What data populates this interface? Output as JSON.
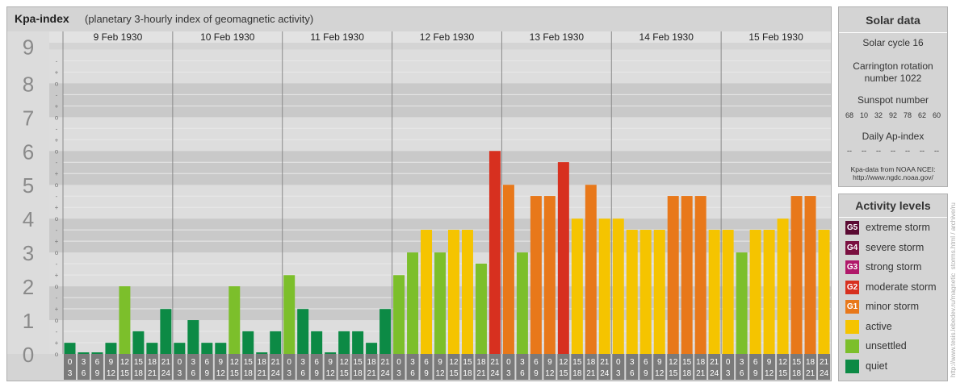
{
  "header": {
    "title": "Kpa-index",
    "subtitle": "(planetary 3-hourly index of geomagnetic activity)"
  },
  "solar": {
    "title": "Solar data",
    "cycle": "Solar cycle 16",
    "carrington": "Carrington rotation number 1022",
    "sunspot_title": "Sunspot number",
    "sunspot_values": [
      "68",
      "10",
      "32",
      "92",
      "78",
      "62",
      "60"
    ],
    "ap_title": "Daily Ap-index",
    "ap_values": [
      "--",
      "--",
      "--",
      "--",
      "--",
      "--",
      "--"
    ],
    "source_line1": "Kpa-data from NOAA NCEI:",
    "source_line2": "http://www.ngdc.noaa.gov/"
  },
  "activity": {
    "title": "Activity levels",
    "items": [
      {
        "code": "G5",
        "label": "extreme storm",
        "color": "#5a0a32"
      },
      {
        "code": "G4",
        "label": "severe storm",
        "color": "#7a1040"
      },
      {
        "code": "G3",
        "label": "strong storm",
        "color": "#b0186a"
      },
      {
        "code": "G2",
        "label": "moderate storm",
        "color": "#d7301f"
      },
      {
        "code": "G1",
        "label": "minor storm",
        "color": "#e8781a"
      },
      {
        "code": "",
        "label": "active",
        "color": "#f5c400"
      },
      {
        "code": "",
        "label": "unsettled",
        "color": "#7cbf2b"
      },
      {
        "code": "",
        "label": "quiet",
        "color": "#0c8a45"
      }
    ]
  },
  "credit": "http://www.tesis.lebedev.ru/magnetic_storms.html / archive/ru",
  "chart_data": {
    "type": "bar",
    "title": "Kpa-index",
    "subtitle": "(planetary 3-hourly index of geomagnetic activity)",
    "ylim": [
      0,
      9
    ],
    "y_ticks": [
      "0",
      "1",
      "2",
      "3",
      "4",
      "5",
      "6",
      "7",
      "8",
      "9"
    ],
    "y_minor_marks": [
      "o",
      "+",
      "-"
    ],
    "days": [
      "9 Feb 1930",
      "10 Feb 1930",
      "11 Feb 1930",
      "12 Feb 1930",
      "13 Feb 1930",
      "14 Feb 1930",
      "15 Feb 1930"
    ],
    "hour_labels": [
      [
        "0",
        "3"
      ],
      [
        "3",
        "6"
      ],
      [
        "6",
        "9"
      ],
      [
        "9",
        "12"
      ],
      [
        "12",
        "15"
      ],
      [
        "15",
        "18"
      ],
      [
        "18",
        "21"
      ],
      [
        "21",
        "24"
      ]
    ],
    "values": [
      [
        0.33,
        0.0,
        0.0,
        0.33,
        2.0,
        0.67,
        0.33,
        1.33
      ],
      [
        0.33,
        1.0,
        0.33,
        0.33,
        2.0,
        0.67,
        0.0,
        0.67
      ],
      [
        2.33,
        1.33,
        0.67,
        0.0,
        0.67,
        0.67,
        0.33,
        1.33
      ],
      [
        2.33,
        3.0,
        3.67,
        3.0,
        3.67,
        3.67,
        2.67,
        6.0
      ],
      [
        5.0,
        3.0,
        4.67,
        4.67,
        5.67,
        4.0,
        5.0,
        4.0
      ],
      [
        4.0,
        3.67,
        3.67,
        3.67,
        4.67,
        4.67,
        4.67,
        3.67
      ],
      [
        3.67,
        3.0,
        3.67,
        3.67,
        4.0,
        4.67,
        4.67,
        3.67
      ]
    ],
    "colors": {
      "quiet": "#0c8a45",
      "unsettled": "#7cbf2b",
      "active": "#f5c400",
      "minor": "#e8781a",
      "moderate": "#d7301f"
    },
    "grid": true
  }
}
